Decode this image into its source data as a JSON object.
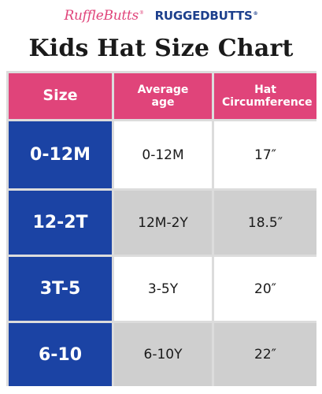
{
  "brands": {
    "ruffle": "RuffleButts",
    "rugged": "RUGGEDBUTTS",
    "tm": "®"
  },
  "title": "Kids Hat Size Chart",
  "table": {
    "headers": [
      "Size",
      "Average age",
      "Hat Circumference"
    ],
    "rows": [
      {
        "size": "0-12M",
        "age": "0-12M",
        "circumference": "17″"
      },
      {
        "size": "12-2T",
        "age": "12M-2Y",
        "circumference": "18.5″"
      },
      {
        "size": "3T-5",
        "age": "3-5Y",
        "circumference": "20″"
      },
      {
        "size": "6-10",
        "age": "6-10Y",
        "circumference": "22″"
      }
    ]
  },
  "colors": {
    "header_pink": "#e0447a",
    "size_blue": "#1b43a4",
    "row_grey": "#cfcfcf"
  }
}
